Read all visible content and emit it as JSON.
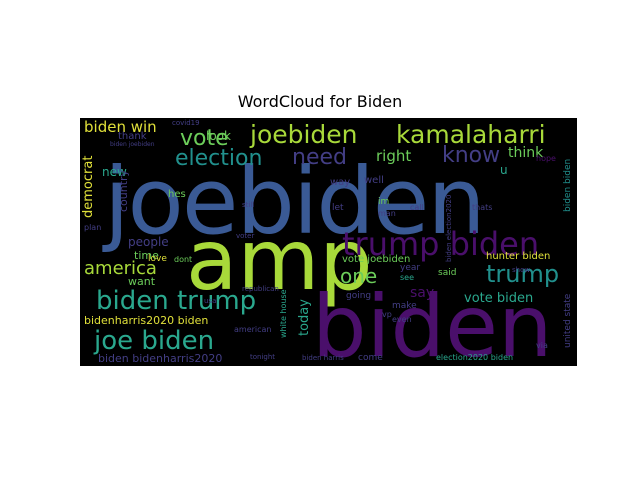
{
  "title": "WordCloud for Biden",
  "words": {
    "joebiden": "joebiden",
    "amp": "amp",
    "biden": "biden",
    "trump_biden": "trump biden",
    "joebiden_small": "joebiden",
    "kamalaharri": "kamalaharri",
    "biden_win": "biden win",
    "vote": "vote",
    "election": "election",
    "need": "need",
    "know": "know",
    "right": "right",
    "think": "think",
    "america": "america",
    "trump": "trump",
    "biden_trump": "biden trump",
    "joe_biden": "joe biden",
    "bidenharris2020_biden": "bidenharris2020 biden",
    "biden_bidenharris2020": "biden bidenharris2020",
    "people": "people",
    "one": "one",
    "say": "say",
    "vote_biden": "vote biden",
    "hunter_biden": "hunter biden",
    "vote_joebiden": "vote joebiden",
    "democrat": "democrat",
    "look": "look",
    "thank": "thank",
    "new": "new",
    "country": "country",
    "hes": "hes",
    "time": "time",
    "want": "want",
    "love": "love",
    "dont": "dont",
    "today": "today",
    "year": "year",
    "said": "said",
    "make": "make",
    "going": "going",
    "way": "way",
    "well": "well",
    "let": "let",
    "im": "im",
    "man": "man",
    "call": "call",
    "thats": "thats",
    "see": "see",
    "even": "even",
    "vp": "vp",
    "come": "come",
    "white_house": "white house",
    "biden_harris": "biden harris",
    "election2020_biden": "election2020 biden",
    "united_state": "united state",
    "biden_biden": "biden biden",
    "u": "u",
    "hope": "hope",
    "plan": "plan",
    "still": "still",
    "voter": "voter",
    "covid19": "covid19",
    "usa": "usa",
    "republican": "republican",
    "american": "american",
    "tonight": "tonight",
    "biden_joebiden": "biden joebiden",
    "biden_election2020": "biden election2020",
    "show": "show",
    "via": "via"
  }
}
